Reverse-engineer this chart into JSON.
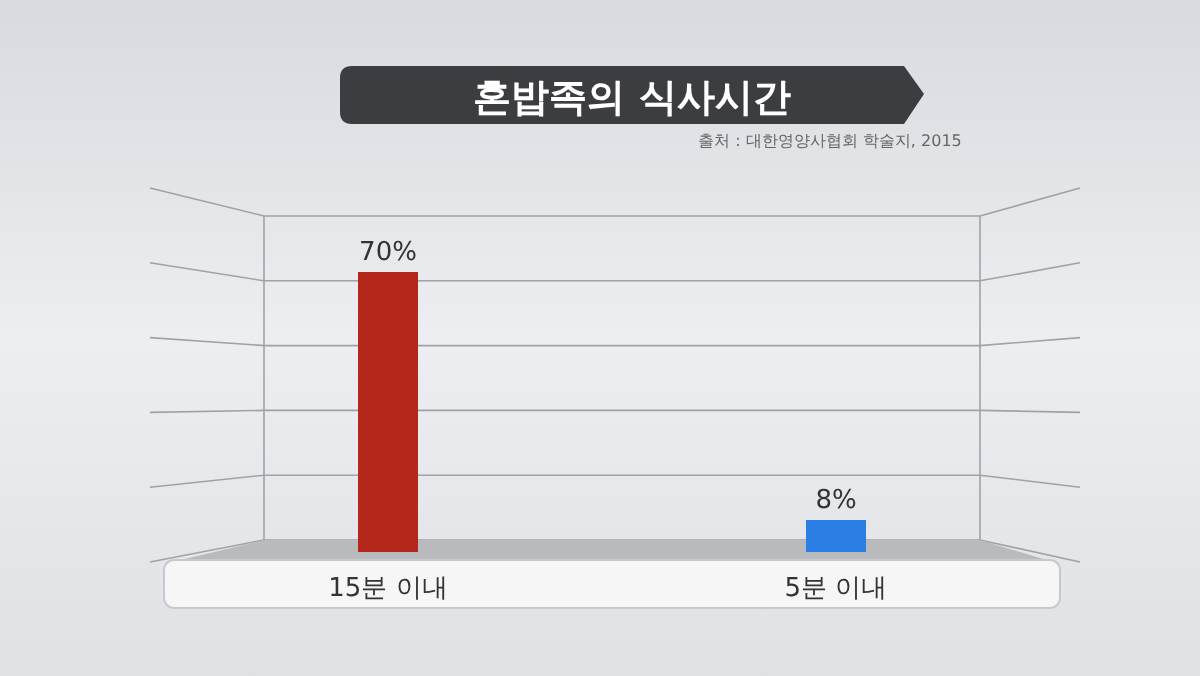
{
  "chart_data": {
    "type": "bar",
    "title": "혼밥족의 식사시간",
    "annotations": [
      "출처 : 대한영양사협회 학술지, 2015"
    ],
    "categories": [
      "15분 이내",
      "5분 이내"
    ],
    "values": [
      70,
      8
    ],
    "colors": [
      "#b3281b",
      "#2b7fe3"
    ],
    "data_labels": true,
    "value_labels": [
      "70%",
      "8%"
    ],
    "grid": "y"
  }
}
